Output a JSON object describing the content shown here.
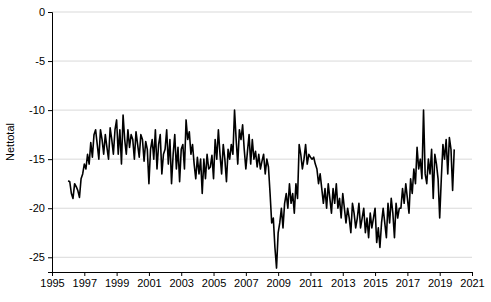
{
  "chart_data": {
    "type": "line",
    "y_label": "Nettotal",
    "color": "#000000",
    "grid": true,
    "xlim": [
      1995,
      2021
    ],
    "xticks": [
      1995,
      1997,
      1999,
      2001,
      2003,
      2005,
      2007,
      2009,
      2011,
      2013,
      2015,
      2017,
      2019,
      2021
    ],
    "ylim": [
      -26.5,
      0
    ],
    "yticks": [
      0,
      -5,
      -10,
      -15,
      -20,
      -25
    ],
    "x": [
      1996,
      1996.1,
      1996.2,
      1996.3,
      1996.4,
      1996.5,
      1996.6,
      1996.7,
      1996.8,
      1996.9,
      1997,
      1997.1,
      1997.2,
      1997.3,
      1997.4,
      1997.5,
      1997.6,
      1997.7,
      1997.8,
      1997.9,
      1998,
      1998.1,
      1998.2,
      1998.3,
      1998.4,
      1998.5,
      1998.6,
      1998.7,
      1998.8,
      1998.9,
      1999,
      1999.1,
      1999.2,
      1999.3,
      1999.4,
      1999.5,
      1999.6,
      1999.7,
      1999.8,
      1999.9,
      2000,
      2000.1,
      2000.2,
      2000.3,
      2000.4,
      2000.5,
      2000.6,
      2000.7,
      2000.8,
      2000.9,
      2001,
      2001.1,
      2001.2,
      2001.3,
      2001.4,
      2001.5,
      2001.6,
      2001.7,
      2001.8,
      2001.9,
      2002,
      2002.1,
      2002.2,
      2002.3,
      2002.4,
      2002.5,
      2002.6,
      2002.7,
      2002.8,
      2002.9,
      2003,
      2003.1,
      2003.2,
      2003.3,
      2003.4,
      2003.5,
      2003.6,
      2003.7,
      2003.8,
      2003.9,
      2004,
      2004.1,
      2004.2,
      2004.3,
      2004.4,
      2004.5,
      2004.6,
      2004.7,
      2004.8,
      2004.9,
      2005,
      2005.1,
      2005.2,
      2005.3,
      2005.4,
      2005.5,
      2005.6,
      2005.7,
      2005.8,
      2005.9,
      2006,
      2006.1,
      2006.2,
      2006.3,
      2006.4,
      2006.5,
      2006.6,
      2006.7,
      2006.8,
      2006.9,
      2007,
      2007.1,
      2007.2,
      2007.3,
      2007.4,
      2007.5,
      2007.6,
      2007.7,
      2007.8,
      2007.9,
      2008,
      2008.1,
      2008.2,
      2008.3,
      2008.4,
      2008.5,
      2008.6,
      2008.7,
      2008.8,
      2008.9,
      2009,
      2009.1,
      2009.2,
      2009.3,
      2009.4,
      2009.5,
      2009.6,
      2009.7,
      2009.8,
      2009.9,
      2010,
      2010.1,
      2010.2,
      2010.3,
      2010.4,
      2010.5,
      2010.6,
      2010.7,
      2010.8,
      2010.9,
      2011,
      2011.1,
      2011.2,
      2011.3,
      2011.4,
      2011.5,
      2011.6,
      2011.7,
      2011.8,
      2011.9,
      2012,
      2012.1,
      2012.2,
      2012.3,
      2012.4,
      2012.5,
      2012.6,
      2012.7,
      2012.8,
      2012.9,
      2013,
      2013.1,
      2013.2,
      2013.3,
      2013.4,
      2013.5,
      2013.6,
      2013.7,
      2013.8,
      2013.9,
      2014,
      2014.1,
      2014.2,
      2014.3,
      2014.4,
      2014.5,
      2014.6,
      2014.7,
      2014.8,
      2014.9,
      2015,
      2015.1,
      2015.2,
      2015.3,
      2015.4,
      2015.5,
      2015.6,
      2015.7,
      2015.8,
      2015.9,
      2016,
      2016.1,
      2016.2,
      2016.3,
      2016.4,
      2016.5,
      2016.6,
      2016.7,
      2016.8,
      2016.9,
      2017,
      2017.1,
      2017.2,
      2017.3,
      2017.4,
      2017.5,
      2017.6,
      2017.7,
      2017.8,
      2017.9,
      2018,
      2018.1,
      2018.2,
      2018.3,
      2018.4,
      2018.5,
      2018.6,
      2018.7,
      2018.8,
      2018.9,
      2019,
      2019.1,
      2019.2,
      2019.3,
      2019.4,
      2019.5,
      2019.6,
      2019.7,
      2019.8,
      2019.9
    ],
    "values": [
      -17.2,
      -17.3,
      -18.5,
      -19,
      -17.5,
      -17.8,
      -18.2,
      -18.9,
      -17,
      -16.5,
      -15.5,
      -16,
      -14.5,
      -15.5,
      -13.3,
      -14.8,
      -12.5,
      -12,
      -13.5,
      -15,
      -12,
      -13,
      -14.5,
      -12.5,
      -13.8,
      -15,
      -11.8,
      -13,
      -14.5,
      -12,
      -11,
      -14.5,
      -12,
      -15.5,
      -10.5,
      -13,
      -14.5,
      -12,
      -13.8,
      -12.5,
      -13,
      -15,
      -12.2,
      -13.5,
      -14.8,
      -12.5,
      -13,
      -15.2,
      -13.2,
      -14,
      -17.5,
      -14,
      -13,
      -15,
      -12,
      -16,
      -13.5,
      -12.5,
      -16.5,
      -14.5,
      -14,
      -12,
      -15.5,
      -13,
      -17.5,
      -14.5,
      -12.5,
      -16,
      -13.8,
      -17.3,
      -14,
      -13.5,
      -16,
      -11,
      -13,
      -12.2,
      -14.5,
      -13.5,
      -15.5,
      -17,
      -14.8,
      -16.5,
      -15,
      -18.5,
      -15,
      -17,
      -14.5,
      -16,
      -15.8,
      -14.6,
      -17,
      -13,
      -15,
      -12,
      -14.5,
      -16.5,
      -13.5,
      -15,
      -17.3,
      -14,
      -15,
      -13.5,
      -14.5,
      -10,
      -13,
      -15.5,
      -12,
      -13,
      -11.5,
      -14,
      -16,
      -14.2,
      -12.5,
      -15.5,
      -13,
      -15,
      -14.2,
      -15.8,
      -14.5,
      -16,
      -15.2,
      -14.5,
      -16.5,
      -15,
      -15.8,
      -18.5,
      -21.5,
      -21,
      -24,
      -26.1,
      -22.5,
      -21.5,
      -20,
      -22,
      -19.5,
      -18.5,
      -20,
      -17.5,
      -19.5,
      -18.5,
      -20.5,
      -17.5,
      -19,
      -13.5,
      -14.5,
      -16,
      -15,
      -13.5,
      -15.5,
      -14.5,
      -14.8,
      -15,
      -14.8,
      -15.5,
      -16,
      -17.5,
      -16.5,
      -18,
      -19.5,
      -18,
      -20,
      -17.5,
      -19,
      -20.5,
      -18,
      -19.5,
      -17.5,
      -20,
      -19,
      -21,
      -18.5,
      -20,
      -21.5,
      -20,
      -21,
      -22.5,
      -19.5,
      -20.5,
      -22,
      -21,
      -19.5,
      -22,
      -21,
      -20,
      -22.5,
      -21,
      -23,
      -20.5,
      -22,
      -21,
      -20,
      -23.5,
      -22,
      -24,
      -21.5,
      -20,
      -21.5,
      -23,
      -19.5,
      -21.5,
      -19,
      -20.5,
      -23,
      -19.5,
      -21,
      -20,
      -20,
      -18,
      -19.5,
      -17.5,
      -19,
      -20.5,
      -17,
      -18.5,
      -16,
      -17.5,
      -13.8,
      -16,
      -15,
      -17,
      -10,
      -16.5,
      -17.5,
      -15,
      -16.5,
      -14,
      -19,
      -14.5,
      -15.5,
      -17,
      -21,
      -17,
      -13.5,
      -15,
      -13,
      -16.5,
      -12.8,
      -14,
      -18.2,
      -14
    ]
  }
}
